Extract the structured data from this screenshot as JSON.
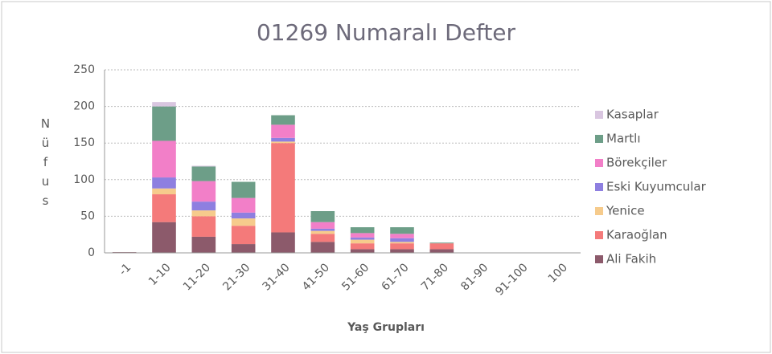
{
  "chart_data": {
    "type": "bar",
    "stacked": true,
    "title": "01269 Numaralı Defter",
    "x_label": "Yaş Grupları",
    "y_label": "Nüfus",
    "categories": [
      "-1",
      "1-10",
      "11-20",
      "21-30",
      "31-40",
      "41-50",
      "51-60",
      "61-70",
      "71-80",
      "81-90",
      "91-100",
      "100"
    ],
    "series": [
      {
        "name": "Ali Fakih",
        "color": "#8c5a6b",
        "values": [
          1,
          42,
          22,
          12,
          28,
          15,
          5,
          5,
          5,
          0,
          0,
          0
        ]
      },
      {
        "name": "Karaoğlan",
        "color": "#f47a7a",
        "values": [
          0,
          38,
          28,
          25,
          122,
          11,
          8,
          8,
          8,
          0,
          0,
          0
        ]
      },
      {
        "name": "Yenice",
        "color": "#f6cb8c",
        "values": [
          0,
          8,
          8,
          10,
          2,
          4,
          5,
          2,
          0,
          0,
          0,
          0
        ]
      },
      {
        "name": "Eski Kuyumcular",
        "color": "#8e7fe0",
        "values": [
          0,
          15,
          12,
          8,
          5,
          3,
          3,
          5,
          0,
          0,
          0,
          0
        ]
      },
      {
        "name": "Börekçiler",
        "color": "#f27fc8",
        "values": [
          0,
          50,
          28,
          20,
          18,
          9,
          6,
          6,
          0,
          0,
          0,
          0
        ]
      },
      {
        "name": "Martlı",
        "color": "#6d9e88",
        "values": [
          0,
          47,
          20,
          22,
          13,
          15,
          8,
          9,
          1,
          0,
          0,
          0
        ]
      },
      {
        "name": "Kasaplar",
        "color": "#d9c6e0",
        "values": [
          0,
          6,
          1,
          0,
          0,
          0,
          0,
          0,
          0,
          0,
          0,
          0
        ]
      }
    ],
    "ylim": [
      0,
      250
    ],
    "yticks": [
      0,
      50,
      100,
      150,
      200,
      250
    ],
    "grid": true,
    "legend": "right"
  }
}
